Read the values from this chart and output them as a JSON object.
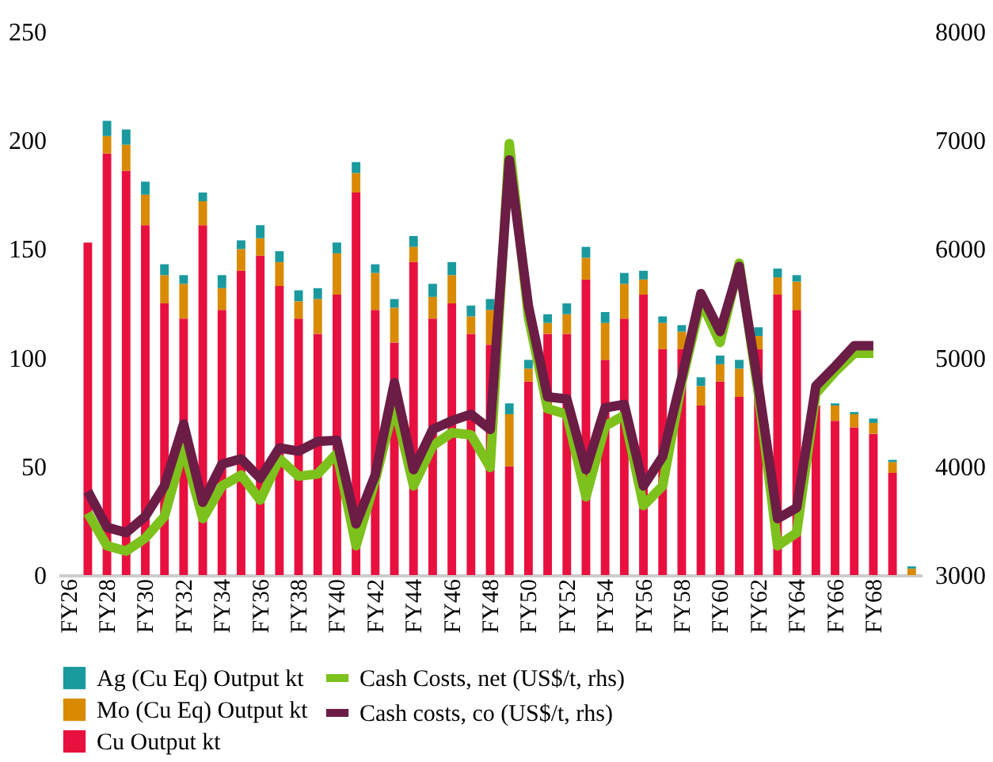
{
  "chart_data": {
    "type": "bar",
    "stacked": true,
    "categories": [
      "FY26",
      null,
      "FY28",
      null,
      "FY30",
      null,
      "FY32",
      null,
      "FY34",
      null,
      "FY36",
      null,
      "FY38",
      null,
      "FY40",
      null,
      "FY42",
      null,
      "FY44",
      null,
      "FY46",
      null,
      "FY48",
      null,
      "FY50",
      null,
      "FY52",
      null,
      "FY54",
      null,
      "FY56",
      null,
      "FY58",
      null,
      "FY60",
      null,
      "FY62",
      null,
      "FY64",
      null,
      "FY66",
      null,
      "FY68",
      null,
      null
    ],
    "series": [
      {
        "name": "Cu Output kt",
        "color": "#e8103f",
        "values": [
          null,
          153,
          194,
          186,
          161,
          125,
          118,
          161,
          122,
          140,
          147,
          133,
          118,
          111,
          129,
          176,
          122,
          107,
          144,
          118,
          125,
          111,
          106,
          50,
          89,
          111,
          111,
          136,
          99,
          118,
          129,
          104,
          104,
          78,
          89,
          82,
          104,
          129,
          122,
          78,
          71,
          68,
          65,
          47,
          null
        ]
      },
      {
        "name": "Mo (Cu Eq) Output kt",
        "color": "#d98a00",
        "values": [
          null,
          0,
          8,
          12,
          14,
          13,
          16,
          11,
          10,
          10,
          8,
          11,
          8,
          16,
          19,
          9,
          17,
          16,
          7,
          10,
          13,
          8,
          16,
          24,
          6,
          5,
          9,
          10,
          17,
          16,
          7,
          12,
          8,
          9,
          8,
          13,
          6,
          8,
          13,
          null,
          7,
          6,
          5,
          5,
          3
        ]
      },
      {
        "name": "Ag (Cu Eq) Output kt",
        "color": "#1a9a9e",
        "values": [
          null,
          0,
          7,
          7,
          6,
          5,
          4,
          4,
          6,
          4,
          6,
          5,
          5,
          5,
          5,
          5,
          4,
          4,
          5,
          6,
          6,
          5,
          5,
          5,
          4,
          4,
          5,
          5,
          5,
          5,
          4,
          3,
          3,
          4,
          4,
          4,
          4,
          4,
          3,
          null,
          1,
          1,
          2,
          1,
          1
        ]
      },
      {
        "name": "Cash Costs, net (US$/t, rhs)",
        "type": "line",
        "axis": "y2",
        "color": "#7dc11c",
        "values": [
          null,
          3570,
          3270,
          3220,
          3340,
          3540,
          4170,
          3520,
          3820,
          3920,
          3690,
          4070,
          3910,
          3930,
          4120,
          3270,
          3870,
          4570,
          3820,
          4190,
          4310,
          4290,
          3990,
          6970,
          5370,
          4530,
          4480,
          3720,
          4370,
          4470,
          3640,
          3820,
          4770,
          5520,
          5140,
          5870,
          4670,
          3270,
          3390,
          4670,
          4870,
          5040,
          5040,
          null,
          null
        ]
      },
      {
        "name": "Cash costs, co (US$/t, rhs)",
        "type": "line",
        "axis": "y2",
        "color": "#6b1d46",
        "values": [
          null,
          3770,
          3440,
          3390,
          3540,
          3820,
          4390,
          3670,
          4020,
          4070,
          3890,
          4170,
          4140,
          4230,
          4240,
          3470,
          3920,
          4770,
          3970,
          4340,
          4420,
          4480,
          4340,
          6820,
          5470,
          4640,
          4620,
          3970,
          4540,
          4570,
          3820,
          4090,
          4820,
          5590,
          5240,
          5840,
          4740,
          3520,
          3620,
          4740,
          4920,
          5110,
          5110,
          null,
          null
        ]
      }
    ],
    "ylim": [
      0,
      250
    ],
    "yticks": [
      0,
      50,
      100,
      150,
      200,
      250
    ],
    "y2lim": [
      3000,
      8000
    ],
    "y2ticks": [
      3000,
      4000,
      5000,
      6000,
      7000,
      8000
    ],
    "grid": false,
    "legend": "bottom"
  }
}
